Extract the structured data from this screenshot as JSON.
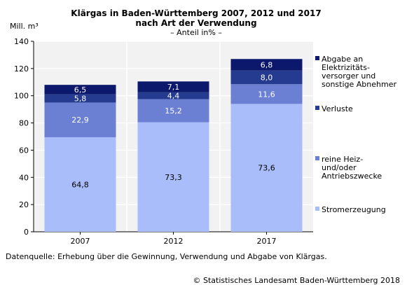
{
  "chart_data": {
    "type": "bar",
    "stacked": true,
    "title_lines": [
      "Klärgas in Baden-Württemberg 2007, 2012 und 2017",
      "nach Art der Verwendung"
    ],
    "subtitle": "– Anteil in% –",
    "ylabel": "Mill. m³",
    "ylim": [
      0,
      140
    ],
    "yticks": [
      0,
      20,
      40,
      60,
      80,
      100,
      120,
      140
    ],
    "categories": [
      "2007",
      "2012",
      "2017"
    ],
    "grid": true,
    "legend_position": "right",
    "series": [
      {
        "name": "Stromerzeugung",
        "legend_lines": [
          "Stromerzeugung"
        ],
        "color": "#a9bdfa",
        "label_color": "#000000",
        "values": [
          69.5,
          80.5,
          94.0
        ],
        "labels": [
          "64,8",
          "73,3",
          "73,6"
        ]
      },
      {
        "name": "reine Heiz- und/oder Antriebszwecke",
        "legend_lines": [
          "reine Heiz-",
          "und/oder",
          "Antriebszwecke"
        ],
        "color": "#6b7fd3",
        "label_color": "#ffffff",
        "values": [
          25.5,
          17.0,
          14.5
        ],
        "labels": [
          "22,9",
          "15,2",
          "11,6"
        ]
      },
      {
        "name": "Verluste",
        "legend_lines": [
          "Verluste"
        ],
        "color": "#243b8f",
        "label_color": "#ffffff",
        "values": [
          6.0,
          5.0,
          10.0
        ],
        "labels": [
          "5,8",
          "4,4",
          "8,0"
        ]
      },
      {
        "name": "Abgabe an Elektrizitätsversorger und sonstige Abnehmer",
        "legend_lines": [
          "Abgabe an",
          "Elektrizitäts-",
          "versorger und",
          "sonstige Abnehmer"
        ],
        "color": "#0c186b",
        "label_color": "#ffffff",
        "values": [
          7.0,
          8.0,
          8.5
        ],
        "labels": [
          "6,5",
          "7,1",
          "6,8"
        ]
      }
    ]
  },
  "footer": {
    "source": "Datenquelle: Erhebung über die Gewinnung, Verwendung und Abgabe von Klärgas.",
    "copyright": "© Statistisches Landesamt Baden-Württemberg 2018"
  }
}
